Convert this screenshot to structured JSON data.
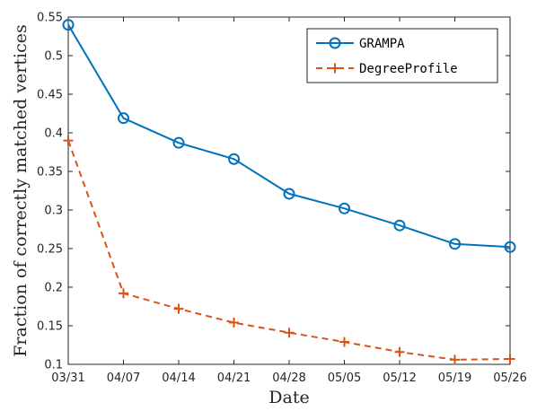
{
  "chart_data": {
    "type": "line",
    "title": "",
    "xlabel": "Date",
    "ylabel": "Fraction of correctly matched vertices",
    "categories": [
      "03/31",
      "04/07",
      "04/14",
      "04/21",
      "04/28",
      "05/05",
      "05/12",
      "05/19",
      "05/26"
    ],
    "ylim": [
      0.1,
      0.55
    ],
    "yticks": [
      "0.1",
      "0.15",
      "0.2",
      "0.25",
      "0.3",
      "0.35",
      "0.4",
      "0.45",
      "0.5",
      "0.55"
    ],
    "grid": false,
    "legend_position": "top-right",
    "series": [
      {
        "name": "GRAMPA",
        "values": [
          0.54,
          0.419,
          0.387,
          0.366,
          0.321,
          0.302,
          0.28,
          0.256,
          0.252
        ],
        "color": "#0072BD",
        "line_style": "solid",
        "marker": "circle"
      },
      {
        "name": "DegreeProfile",
        "values": [
          0.39,
          0.192,
          0.172,
          0.154,
          0.141,
          0.129,
          0.116,
          0.106,
          0.107
        ],
        "color": "#D95319",
        "line_style": "dashed",
        "marker": "plus"
      }
    ]
  }
}
